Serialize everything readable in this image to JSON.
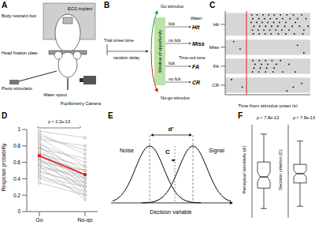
{
  "panels": {
    "A": {
      "panel_label": "A",
      "labels": {
        "box": "Body restraint box",
        "ecg": "ECG implant",
        "plate": "Head fixation plate",
        "piezo": "Piezo stimulator",
        "spout": "Water spout",
        "camera": "Pupillometry Camera"
      }
    },
    "B": {
      "panel_label": "B",
      "trial_onset": "Trial onset tone",
      "delay": "random delay",
      "go": "Go stimulus",
      "nogo": "No-go stimulus",
      "window": "Window of opportunity",
      "lick": "lick",
      "no_lick": "no lick",
      "water": "Water",
      "timeout": "Time-out tone",
      "hit": "Hit",
      "miss": "Miss",
      "fa": "FA",
      "cr": "CR"
    },
    "E": {
      "panel_label": "E",
      "noise": "Noise",
      "signal": "Signal",
      "dprime": "d'",
      "criterion": "C",
      "x_label": "Decision variable"
    }
  },
  "chart_data": [
    {
      "panel_label": "C",
      "type": "scatter",
      "x_label": "Time from stimulus onset (s)",
      "xlim": [
        -1,
        3
      ],
      "xticks": [
        -1,
        0,
        1,
        2,
        3
      ],
      "ylim": [
        0,
        22
      ],
      "yticks": [
        {
          "value": 3.5,
          "label": "Hit"
        },
        {
          "value": 9.5,
          "label": "Miss"
        },
        {
          "value": 14.5,
          "label": "FA"
        },
        {
          "value": 19.5,
          "label": "CR"
        }
      ],
      "tick_labels": "y",
      "color": "#000000",
      "reference_lines": [
        0
      ],
      "row_bands": [
        [
          1,
          6
        ],
        [
          8,
          11
        ],
        [
          13,
          16
        ],
        [
          18,
          21
        ]
      ],
      "trials": [
        {
          "y": 1,
          "x": [
            0.25,
            0.5,
            0.78,
            1.05,
            1.3,
            1.6,
            1.9,
            2.2,
            2.6
          ]
        },
        {
          "y": 2,
          "x": [
            0.3,
            0.58,
            0.85,
            1.12,
            1.42,
            1.7,
            2.05,
            2.4,
            2.8
          ]
        },
        {
          "y": 3,
          "x": [
            0.22,
            0.48,
            0.74,
            1.0,
            1.28,
            1.55,
            1.85,
            2.3
          ]
        },
        {
          "y": 4,
          "x": [
            0.35,
            0.62,
            0.9,
            1.18,
            1.47,
            1.8,
            2.15,
            2.5,
            2.9
          ]
        },
        {
          "y": 5,
          "x": [
            0.28,
            0.55,
            0.82,
            1.1,
            1.38,
            1.66,
            2.0,
            2.7
          ]
        },
        {
          "y": 6,
          "x": [
            0.32,
            0.6,
            0.88,
            1.16,
            1.5,
            1.85,
            2.25,
            2.65
          ]
        },
        {
          "y": 8,
          "x": [
            -0.6
          ]
        },
        {
          "y": 9,
          "x": [
            2.4
          ]
        },
        {
          "y": 10,
          "x": [
            -0.3
          ]
        },
        {
          "y": 11,
          "x": [
            2.7
          ]
        },
        {
          "y": 13,
          "x": [
            0.3,
            0.6,
            0.9,
            1.2,
            1.6
          ]
        },
        {
          "y": 14,
          "x": [
            0.4,
            0.7,
            1.0,
            1.4,
            2.0
          ]
        },
        {
          "y": 15,
          "x": [
            0.35,
            0.65,
            0.95,
            1.3
          ]
        },
        {
          "y": 16,
          "x": [
            0.28,
            0.58,
            0.9,
            1.25,
            1.7,
            2.3
          ]
        },
        {
          "y": 18,
          "x": [
            -0.7
          ]
        },
        {
          "y": 19,
          "x": [
            2.6
          ]
        },
        {
          "y": 20,
          "x": [
            -0.2,
            2.2
          ]
        },
        {
          "y": 21,
          "x": [
            1.9
          ]
        }
      ]
    },
    {
      "panel_label": "D",
      "type": "line",
      "y_label": "Response probability",
      "annotation": "p < 2.2e-13",
      "categories": [
        "Go",
        "No-go"
      ],
      "ylim": [
        0,
        1
      ],
      "yticks": [
        0,
        0.2,
        0.4,
        0.6,
        0.8,
        1
      ],
      "color": "#9e9e9e",
      "series": [
        {
          "values": [
            0.95,
            0.7
          ]
        },
        {
          "values": [
            0.9,
            0.55
          ]
        },
        {
          "values": [
            0.88,
            0.8
          ]
        },
        {
          "values": [
            0.85,
            0.4
          ]
        },
        {
          "values": [
            0.82,
            0.6
          ]
        },
        {
          "values": [
            0.8,
            0.35
          ]
        },
        {
          "values": [
            0.78,
            0.5
          ]
        },
        {
          "values": [
            0.76,
            0.65
          ]
        },
        {
          "values": [
            0.75,
            0.3
          ]
        },
        {
          "values": [
            0.72,
            0.45
          ]
        },
        {
          "values": [
            0.7,
            0.55
          ]
        },
        {
          "values": [
            0.7,
            0.25
          ]
        },
        {
          "values": [
            0.68,
            0.4
          ]
        },
        {
          "values": [
            0.66,
            0.5
          ]
        },
        {
          "values": [
            0.65,
            0.2
          ]
        },
        {
          "values": [
            0.63,
            0.45
          ]
        },
        {
          "values": [
            0.62,
            0.35
          ]
        },
        {
          "values": [
            0.6,
            0.5
          ]
        },
        {
          "values": [
            0.58,
            0.3
          ]
        },
        {
          "values": [
            0.56,
            0.4
          ]
        },
        {
          "values": [
            0.55,
            0.15
          ]
        },
        {
          "values": [
            0.53,
            0.45
          ]
        },
        {
          "values": [
            0.5,
            0.3
          ]
        },
        {
          "values": [
            0.48,
            0.35
          ]
        },
        {
          "values": [
            0.45,
            0.2
          ]
        },
        {
          "values": [
            0.42,
            0.3
          ]
        },
        {
          "values": [
            0.4,
            0.25
          ]
        },
        {
          "values": [
            0.35,
            0.2
          ]
        },
        {
          "values": [
            0.98,
            0.9
          ]
        },
        {
          "values": [
            0.92,
            0.75
          ]
        },
        {
          "values": [
            0.68,
            0.45
          ],
          "color": "#e41a1c",
          "marker": "square"
        }
      ]
    },
    {
      "panel_label": "F",
      "type": "box",
      "y_label": "Perceptual sensitivity (d')",
      "annotation": "p < 7.8e-13",
      "tick_labels": false,
      "ylim": [
        -1,
        4
      ],
      "box": {
        "min": -0.5,
        "q1": 0.6,
        "median": 1.2,
        "q3": 2.0,
        "max": 3.5
      }
    },
    {
      "type": "box",
      "y_label": "Decision criterion (C)",
      "annotation": "p < 7.8e-13",
      "tick_labels": false,
      "ylim": [
        -2,
        2
      ],
      "box": {
        "min": -1.5,
        "q1": -0.5,
        "median": -0.1,
        "q3": 0.3,
        "max": 1.3
      }
    }
  ]
}
